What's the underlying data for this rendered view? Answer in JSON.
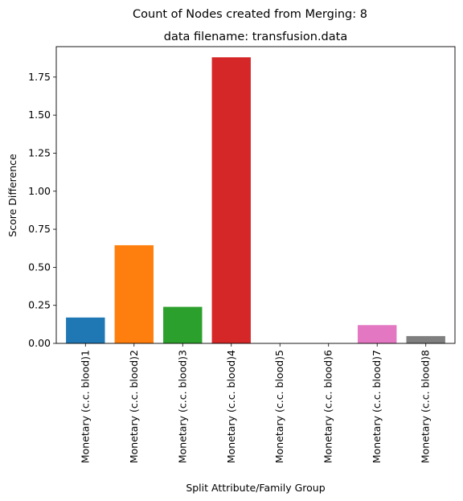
{
  "chart_data": {
    "type": "bar",
    "suptitle": "Count of Nodes created from Merging: 8",
    "title": "data filename: transfusion.data",
    "xlabel": "Split Attribute/Family Group",
    "ylabel": "Score Difference",
    "ylim": [
      0,
      1.95
    ],
    "yticks": [
      "0.00",
      "0.25",
      "0.50",
      "0.75",
      "1.00",
      "1.25",
      "1.50",
      "1.75"
    ],
    "categories": [
      "Monetary (c.c. blood)1",
      "Monetary (c.c. blood)2",
      "Monetary (c.c. blood)3",
      "Monetary (c.c. blood)4",
      "Monetary (c.c. blood)5",
      "Monetary (c.c. blood)6",
      "Monetary (c.c. blood)7",
      "Monetary (c.c. blood)8"
    ],
    "values": [
      0.17,
      0.645,
      0.24,
      1.88,
      0.0,
      0.0,
      0.12,
      0.048
    ],
    "colors": [
      "#1f77b4",
      "#ff7f0e",
      "#2ca02c",
      "#d62728",
      "#9467bd",
      "#8c564b",
      "#e377c2",
      "#7f7f7f"
    ],
    "grid": false
  }
}
